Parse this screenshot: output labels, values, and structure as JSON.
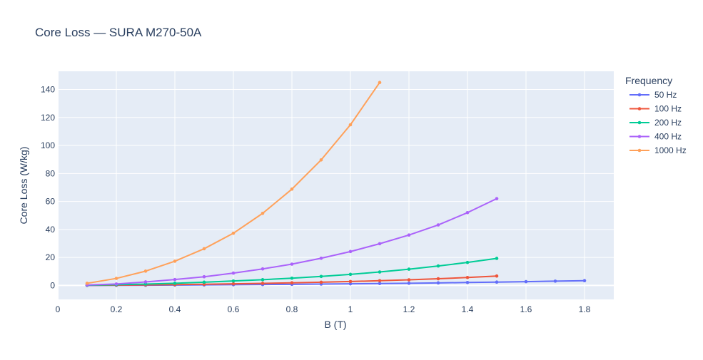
{
  "chart_data": {
    "type": "line",
    "title": "Core Loss — SURA M270-50A",
    "xlabel": "B (T)",
    "ylabel": "Core Loss (W/kg)",
    "xlim": [
      0,
      1.9
    ],
    "ylim": [
      -10,
      153
    ],
    "x_ticks": [
      0,
      0.2,
      0.4,
      0.6,
      0.8,
      1,
      1.2,
      1.4,
      1.6,
      1.8
    ],
    "x_tick_labels": [
      "0",
      "0.2",
      "0.4",
      "0.6",
      "0.8",
      "1",
      "1.2",
      "1.4",
      "1.6",
      "1.8"
    ],
    "y_ticks": [
      0,
      20,
      40,
      60,
      80,
      100,
      120,
      140
    ],
    "y_tick_labels": [
      "0",
      "20",
      "40",
      "60",
      "80",
      "100",
      "120",
      "140"
    ],
    "grid": true,
    "legend_title": "Frequency",
    "legend_position": "right",
    "series": [
      {
        "name": "50 Hz",
        "color": "#636efa",
        "x": [
          0.1,
          0.2,
          0.3,
          0.4,
          0.5,
          0.6,
          0.7,
          0.8,
          0.9,
          1.0,
          1.1,
          1.2,
          1.3,
          1.4,
          1.5,
          1.6,
          1.7,
          1.8
        ],
        "y": [
          0.02,
          0.07,
          0.15,
          0.25,
          0.36,
          0.48,
          0.62,
          0.78,
          0.95,
          1.13,
          1.33,
          1.55,
          1.8,
          2.07,
          2.37,
          2.7,
          3.05,
          3.4
        ]
      },
      {
        "name": "100 Hz",
        "color": "#ef553b",
        "x": [
          0.1,
          0.2,
          0.3,
          0.4,
          0.5,
          0.6,
          0.7,
          0.8,
          0.9,
          1.0,
          1.1,
          1.2,
          1.3,
          1.4,
          1.5
        ],
        "y": [
          0.05,
          0.18,
          0.35,
          0.57,
          0.83,
          1.13,
          1.47,
          1.85,
          2.28,
          2.78,
          3.35,
          4.0,
          4.75,
          5.65,
          6.7
        ]
      },
      {
        "name": "200 Hz",
        "color": "#00cc96",
        "x": [
          0.1,
          0.2,
          0.3,
          0.4,
          0.5,
          0.6,
          0.7,
          0.8,
          0.9,
          1.0,
          1.1,
          1.2,
          1.3,
          1.4,
          1.5
        ],
        "y": [
          0.15,
          0.5,
          0.95,
          1.55,
          2.3,
          3.15,
          4.1,
          5.15,
          6.4,
          7.9,
          9.6,
          11.6,
          13.9,
          16.4,
          19.3
        ]
      },
      {
        "name": "400 Hz",
        "color": "#ab63fa",
        "x": [
          0.1,
          0.2,
          0.3,
          0.4,
          0.5,
          0.6,
          0.7,
          0.8,
          0.9,
          1.0,
          1.1,
          1.2,
          1.3,
          1.4,
          1.5
        ],
        "y": [
          0.3,
          1.0,
          2.5,
          4.2,
          6.2,
          8.8,
          11.8,
          15.2,
          19.4,
          24.2,
          29.8,
          36.0,
          43.2,
          52.0,
          62.0
        ]
      },
      {
        "name": "1000 Hz",
        "color": "#ffa15a",
        "x": [
          0.1,
          0.2,
          0.3,
          0.4,
          0.5,
          0.6,
          0.7,
          0.8,
          0.9,
          1.0,
          1.1
        ],
        "y": [
          1.5,
          5.0,
          10.2,
          17.3,
          26.2,
          37.3,
          51.5,
          68.8,
          89.7,
          114.8,
          145.0
        ]
      }
    ]
  }
}
